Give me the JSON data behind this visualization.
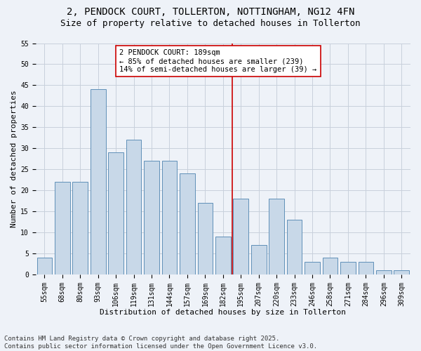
{
  "title1": "2, PENDOCK COURT, TOLLERTON, NOTTINGHAM, NG12 4FN",
  "title2": "Size of property relative to detached houses in Tollerton",
  "xlabel": "Distribution of detached houses by size in Tollerton",
  "ylabel": "Number of detached properties",
  "categories": [
    "55sqm",
    "68sqm",
    "80sqm",
    "93sqm",
    "106sqm",
    "119sqm",
    "131sqm",
    "144sqm",
    "157sqm",
    "169sqm",
    "182sqm",
    "195sqm",
    "207sqm",
    "220sqm",
    "233sqm",
    "246sqm",
    "258sqm",
    "271sqm",
    "284sqm",
    "296sqm",
    "309sqm"
  ],
  "values": [
    4,
    22,
    22,
    44,
    29,
    32,
    27,
    27,
    24,
    17,
    9,
    18,
    7,
    18,
    13,
    3,
    4,
    3,
    3,
    1,
    1
  ],
  "bar_color": "#c8d8e8",
  "bar_edge_color": "#6090b8",
  "grid_color": "#c8d0dc",
  "background_color": "#eef2f8",
  "vline_x_index": 11,
  "vline_color": "#cc0000",
  "annotation_text": "2 PENDOCK COURT: 189sqm\n← 85% of detached houses are smaller (239)\n14% of semi-detached houses are larger (39) →",
  "annotation_box_color": "#ffffff",
  "annotation_box_edge_color": "#cc0000",
  "ylim": [
    0,
    55
  ],
  "yticks": [
    0,
    5,
    10,
    15,
    20,
    25,
    30,
    35,
    40,
    45,
    50,
    55
  ],
  "footnote": "Contains HM Land Registry data © Crown copyright and database right 2025.\nContains public sector information licensed under the Open Government Licence v3.0.",
  "title1_fontsize": 10,
  "title2_fontsize": 9,
  "xlabel_fontsize": 8,
  "ylabel_fontsize": 8,
  "tick_fontsize": 7,
  "annotation_fontsize": 7.5,
  "footnote_fontsize": 6.5
}
